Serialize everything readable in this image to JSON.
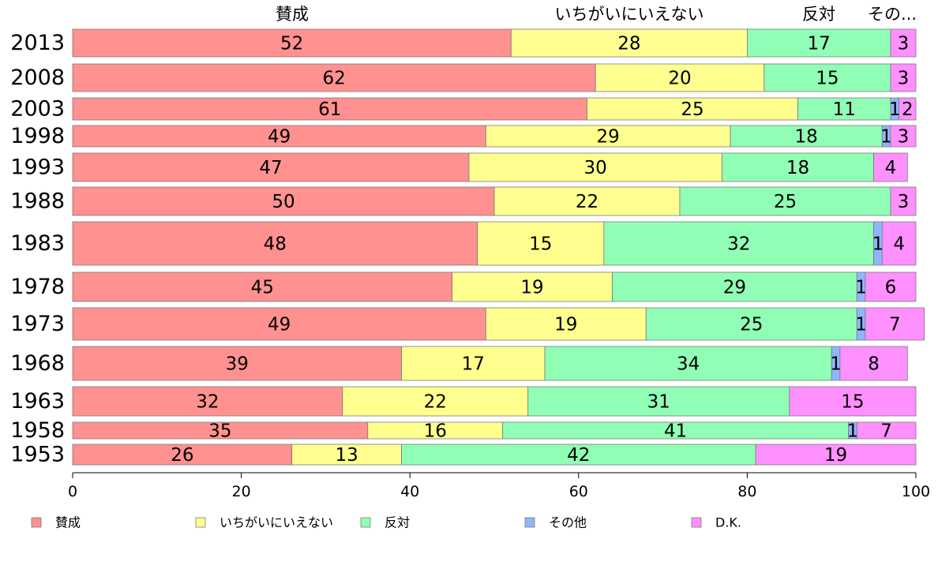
{
  "chart_data": {
    "type": "bar",
    "orientation": "horizontal",
    "stacked": true,
    "categories": [
      "2013",
      "2008",
      "2003",
      "1998",
      "1993",
      "1988",
      "1983",
      "1978",
      "1973",
      "1968",
      "1963",
      "1958",
      "1953"
    ],
    "series": [
      {
        "name": "賛成",
        "color": "#FF9190",
        "values": [
          52,
          62,
          61,
          49,
          47,
          50,
          48,
          45,
          49,
          39,
          32,
          35,
          26
        ]
      },
      {
        "name": "いちがいにいえない",
        "color": "#FFFF90",
        "values": [
          28,
          20,
          25,
          29,
          30,
          22,
          15,
          19,
          19,
          17,
          22,
          16,
          13
        ]
      },
      {
        "name": "反対",
        "color": "#90FFB5",
        "values": [
          17,
          15,
          11,
          18,
          18,
          25,
          32,
          29,
          25,
          34,
          31,
          41,
          42
        ]
      },
      {
        "name": "その他",
        "color": "#90B5FF",
        "values": [
          0,
          0,
          1,
          1,
          0,
          0,
          1,
          1,
          1,
          1,
          0,
          1,
          0
        ]
      },
      {
        "name": "D.K.",
        "color": "#FF90FF",
        "values": [
          3,
          3,
          2,
          3,
          4,
          3,
          4,
          6,
          7,
          8,
          15,
          7,
          19
        ]
      }
    ],
    "top_labels": [
      "賛成",
      "いちがいにいえない",
      "反対",
      "その..."
    ],
    "xlim": [
      0,
      100
    ],
    "xticks": [
      "0",
      "20",
      "40",
      "60",
      "80",
      "100"
    ],
    "grid": false,
    "legend_position": "bottom"
  }
}
